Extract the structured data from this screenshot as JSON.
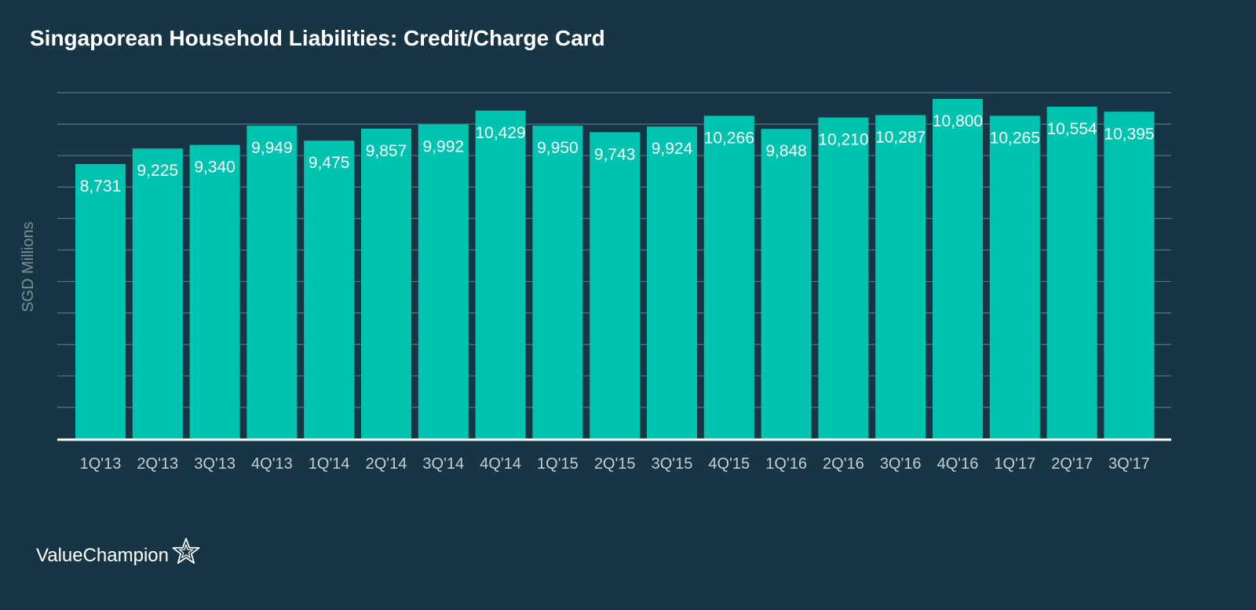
{
  "chart_data": {
    "type": "bar",
    "title": "Singaporean Household Liabilities: Credit/Charge Card",
    "xlabel": "",
    "ylabel": "SGD Millions",
    "ylim": [
      0,
      11000
    ],
    "grid": true,
    "grid_step": 1000,
    "y_tick_labels_visible": false,
    "categories": [
      "1Q'13",
      "2Q'13",
      "3Q'13",
      "4Q'13",
      "1Q'14",
      "2Q'14",
      "3Q'14",
      "4Q'14",
      "1Q'15",
      "2Q'15",
      "3Q'15",
      "4Q'15",
      "1Q'16",
      "2Q'16",
      "3Q'16",
      "4Q'16",
      "1Q'17",
      "2Q'17",
      "3Q'17"
    ],
    "values": [
      8731,
      9225,
      9340,
      9949,
      9475,
      9857,
      9992,
      10429,
      9950,
      9743,
      9924,
      10266,
      9848,
      10210,
      10287,
      10800,
      10265,
      10554,
      10395
    ],
    "data_labels": [
      "8,731",
      "9,225",
      "9,340",
      "9,949",
      "9,475",
      "9,857",
      "9,992",
      "10,429",
      "9,950",
      "9,743",
      "9,924",
      "10,266",
      "9,848",
      "10,210",
      "10,287",
      "10,800",
      "10,265",
      "10,554",
      "10,395"
    ]
  },
  "colors": {
    "background": "#173544",
    "bar": "#00c4b0",
    "gridline": "#5b7480",
    "baseline": "#ffffff",
    "axis_text": "#c5ced2",
    "ylabel_text": "#7d8f98",
    "label_text": "#ffffff"
  },
  "logo": {
    "text": "ValueChampion",
    "icon": "star-outline-icon"
  }
}
